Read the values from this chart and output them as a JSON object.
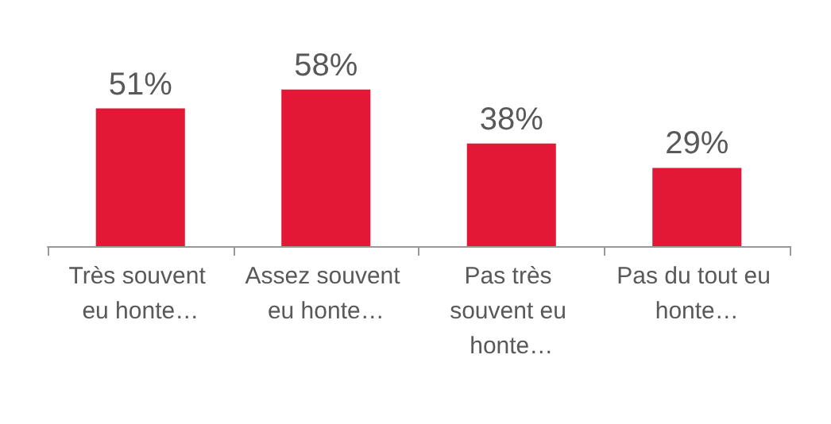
{
  "chart_data": {
    "type": "bar",
    "categories": [
      "Très souvent eu honte…",
      "Assez souvent eu honte…",
      "Pas très souvent eu honte…",
      "Pas du tout eu honte…"
    ],
    "values": [
      51,
      58,
      38,
      29
    ],
    "color": "#e31837",
    "value_labels": [
      "51%",
      "58%",
      "38%",
      "29%"
    ]
  }
}
